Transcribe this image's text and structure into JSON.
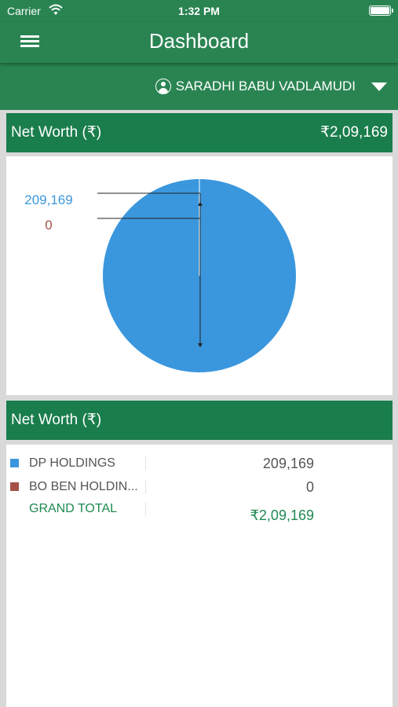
{
  "status_bar": {
    "carrier": "Carrier",
    "time": "1:32 PM"
  },
  "nav": {
    "title": "Dashboard"
  },
  "user": {
    "name": "SARADHI BABU VADLAMUDI"
  },
  "networth_header": {
    "title": "Net Worth (₹)",
    "value": "₹2,09,169"
  },
  "breakdown_header": {
    "title": "Net Worth (₹)"
  },
  "colors": {
    "brand": "#2a8452",
    "header": "#1a7d4c",
    "dp": "#3a97dd",
    "bo": "#a55149",
    "total": "#1f8a52"
  },
  "chart_data": {
    "type": "pie",
    "categories": [
      "DP HOLDINGS",
      "BO BEN HOLDINGS"
    ],
    "values": [
      209169,
      0
    ],
    "data_labels": [
      "209,169",
      "0"
    ],
    "colors": [
      "#3a97dd",
      "#a55149"
    ]
  },
  "table": {
    "rows": [
      {
        "label": "DP HOLDINGS",
        "value": "209,169",
        "color": "#3a97dd"
      },
      {
        "label": "BO BEN HOLDIN...",
        "value": "0",
        "color": "#a55149"
      }
    ],
    "total": {
      "label": "GRAND TOTAL",
      "value": "₹2,09,169"
    }
  }
}
